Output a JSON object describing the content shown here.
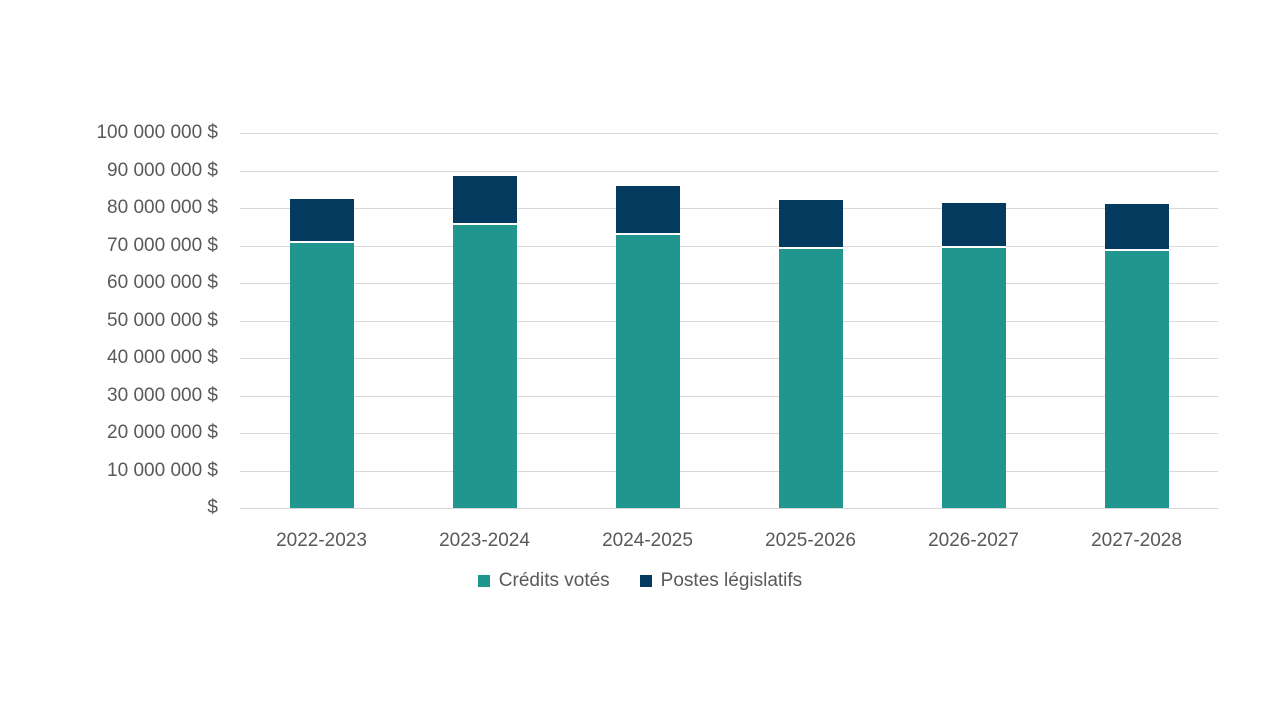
{
  "page": {
    "background_color": "#ffffff",
    "text_color": "#595959",
    "gridline_color": "#d9d9d9"
  },
  "chart_data": {
    "type": "bar",
    "stacked": true,
    "title": "",
    "xlabel": "",
    "ylabel": "",
    "categories": [
      "2022-2023",
      "2023-2024",
      "2024-2025",
      "2025-2026",
      "2026-2027",
      "2027-2028"
    ],
    "series": [
      {
        "name": "Crédits votés",
        "color": "#21968f",
        "values": [
          70600000,
          75500000,
          72700000,
          69100000,
          69300000,
          68500000
        ]
      },
      {
        "name": "Postes législatifs",
        "color": "#043a5e",
        "values": [
          11900000,
          13100000,
          13100000,
          13100000,
          12000000,
          12500000
        ]
      }
    ],
    "ylim": [
      0,
      100000000
    ],
    "ytick_step": 10000000,
    "ytick_labels_top_down": [
      "100 000 000 $",
      "90 000 000 $",
      "80 000 000 $",
      "70 000 000 $",
      "60 000 000 $",
      "50 000 000 $",
      "40 000 000 $",
      "30 000 000 $",
      "20 000 000 $",
      "10 000 000 $",
      "$"
    ],
    "grid": true,
    "legend_position": "bottom-center",
    "segment_divider_color": "#ffffff"
  }
}
